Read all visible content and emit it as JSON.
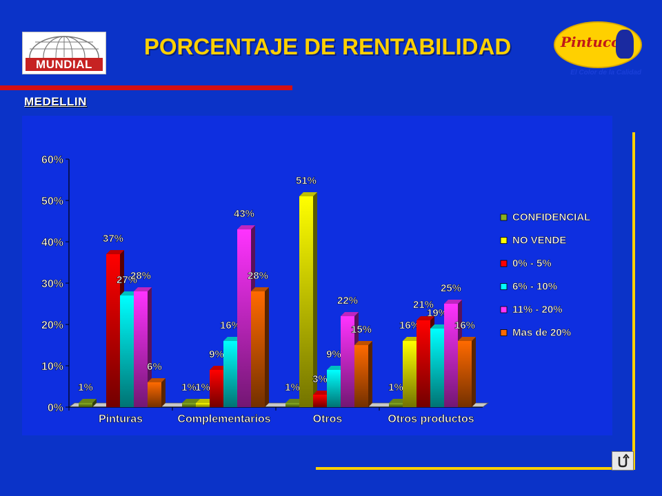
{
  "header": {
    "title": "PORCENTAJE DE RENTABILIDAD",
    "subtitle": "MEDELLIN",
    "left_logo_text": "MUNDIAL",
    "right_logo_text": "Pintuco",
    "right_logo_tagline": "El Color de la Calidad"
  },
  "colors": {
    "background": "#0b33c8",
    "chart_panel": "#0e2fe0",
    "title": "#ffd000",
    "accent_line": "#d40f14",
    "decor_lines": "#ffd000",
    "series": [
      "#8ab020",
      "#ffff00",
      "#ff0000",
      "#00ffff",
      "#ff33ff",
      "#ff6a00"
    ]
  },
  "icons": {
    "return": "return-u-turn-icon",
    "left_logo": "globe-logo-icon",
    "right_logo": "painter-logo-icon"
  },
  "chart_data": {
    "type": "bar",
    "categories": [
      "Pinturas",
      "Complementarios",
      "Otros",
      "Otros productos"
    ],
    "series": [
      {
        "name": "CONFIDENCIAL",
        "values": [
          1,
          1,
          1,
          1
        ]
      },
      {
        "name": "NO VENDE",
        "values": [
          0,
          1,
          51,
          16
        ]
      },
      {
        "name": "0% - 5%",
        "values": [
          37,
          9,
          3,
          21
        ]
      },
      {
        "name": "6% - 10%",
        "values": [
          27,
          16,
          9,
          19
        ]
      },
      {
        "name": "11% - 20%",
        "values": [
          28,
          43,
          22,
          25
        ]
      },
      {
        "name": "Mas de 20%",
        "values": [
          6,
          28,
          15,
          16
        ]
      }
    ],
    "data_labels": [
      [
        "1%",
        "",
        "37%",
        "27%",
        "28%",
        "6%"
      ],
      [
        "1%",
        "1%",
        "9%",
        "16%",
        "43%",
        "28%"
      ],
      [
        "1%",
        "51%",
        "3%",
        "9%",
        "22%",
        "15%"
      ],
      [
        "1%",
        "16%",
        "21%",
        "19%",
        "25%",
        "16%"
      ]
    ],
    "yticks": [
      "0%",
      "10%",
      "20%",
      "30%",
      "40%",
      "50%",
      "60%"
    ],
    "ylim": [
      0,
      60
    ],
    "unit": "%",
    "legend_position": "right",
    "grid": false
  }
}
